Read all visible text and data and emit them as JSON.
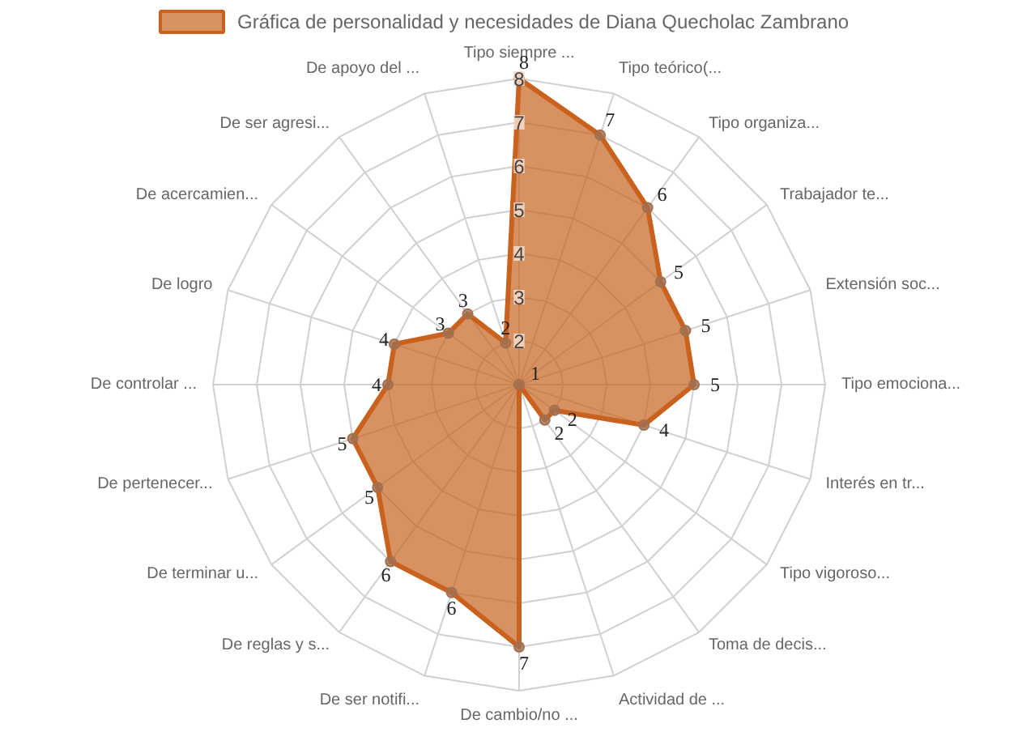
{
  "chart_data": {
    "type": "radar",
    "categories": [
      "Tipo siempre ...",
      "Tipo teórico(...",
      "Tipo organiza...",
      "Trabajador te...",
      "Extensión soc...",
      "Tipo emociona...",
      "Interés en tr...",
      "Tipo vigoroso...",
      "Toma de decis...",
      "Actividad de ...",
      "De cambio/no ...",
      "De ser notifi...",
      "De reglas y s...",
      "De terminar u...",
      "De pertenecer...",
      "De controlar ...",
      "De logro",
      "De acercamien...",
      "De ser agresi...",
      "De apoyo del ..."
    ],
    "series": [
      {
        "name": "Gráfica de personalidad y necesidades de Diana Quecholac Zambrano",
        "color": "#c8621e",
        "values": [
          8,
          7,
          6,
          5,
          5,
          5,
          4,
          2,
          2,
          1,
          7,
          6,
          6,
          5,
          5,
          4,
          4,
          3,
          3,
          2
        ]
      }
    ],
    "ylim": [
      1,
      8
    ],
    "yticks": [
      2,
      3,
      4,
      5,
      6,
      7,
      8
    ],
    "grid": true,
    "legend": "top",
    "marker": "circle",
    "data_labels": true
  }
}
